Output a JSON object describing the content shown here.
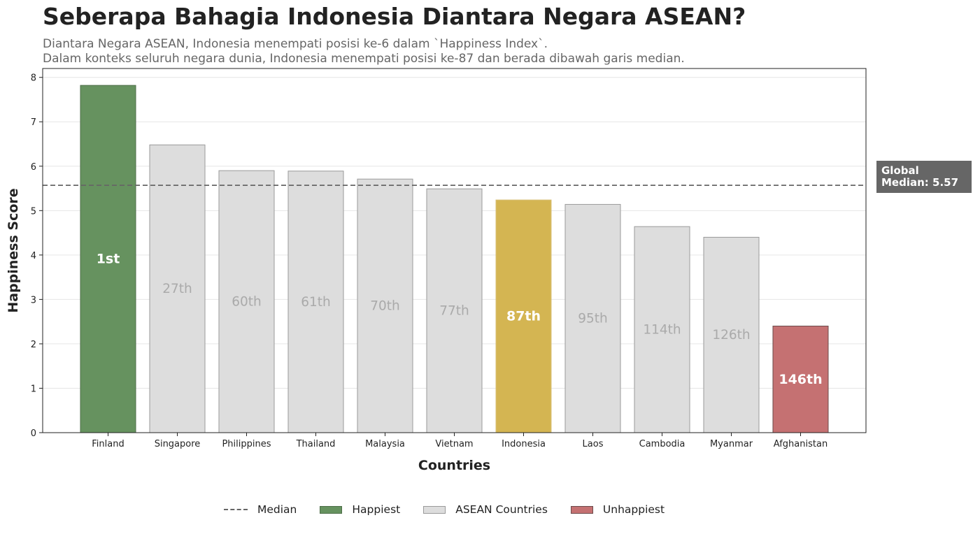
{
  "chart_data": {
    "type": "bar",
    "title": "Seberapa Bahagia Indonesia Diantara Negara ASEAN?",
    "subtitle": [
      "Diantara Negara ASEAN, Indonesia menempati posisi ke-6 dalam `Happiness Index`.",
      "Dalam konteks seluruh negara dunia, Indonesia menempati posisi ke-87 dan berada dibawah garis median."
    ],
    "xlabel": "Countries",
    "ylabel": "Happiness Score",
    "ylim": [
      0,
      8.2
    ],
    "yticks": [
      0,
      1,
      2,
      3,
      4,
      5,
      6,
      7,
      8
    ],
    "grid": "y",
    "categories": [
      "Finland",
      "Singapore",
      "Philippines",
      "Thailand",
      "Malaysia",
      "Vietnam",
      "Indonesia",
      "Laos",
      "Cambodia",
      "Myanmar",
      "Afghanistan"
    ],
    "values": [
      7.82,
      6.48,
      5.9,
      5.89,
      5.71,
      5.49,
      5.24,
      5.14,
      4.64,
      4.4,
      2.4
    ],
    "rank_labels": [
      "1st",
      "27th",
      "60th",
      "61th",
      "70th",
      "77th",
      "87th",
      "95th",
      "114th",
      "126th",
      "146th"
    ],
    "groups": [
      "happiest",
      "asean",
      "asean",
      "asean",
      "asean",
      "asean",
      "indonesia",
      "asean",
      "asean",
      "asean",
      "unhappiest"
    ],
    "median": {
      "value": 5.57,
      "label_line1": "Global",
      "label_line2": "Median: 5.57"
    },
    "legend": {
      "placement": "bottom-center",
      "items": [
        {
          "label": "Median",
          "kind": "line"
        },
        {
          "label": "Happiest",
          "kind": "happiest"
        },
        {
          "label": "ASEAN Countries",
          "kind": "asean"
        },
        {
          "label": "Unhappiest",
          "kind": "unhappiest"
        }
      ]
    },
    "colors": {
      "happiest": "#66925f",
      "asean": "#dddddd",
      "indonesia": "#d4b552",
      "unhappiest": "#c57172",
      "median": "#666666"
    }
  }
}
